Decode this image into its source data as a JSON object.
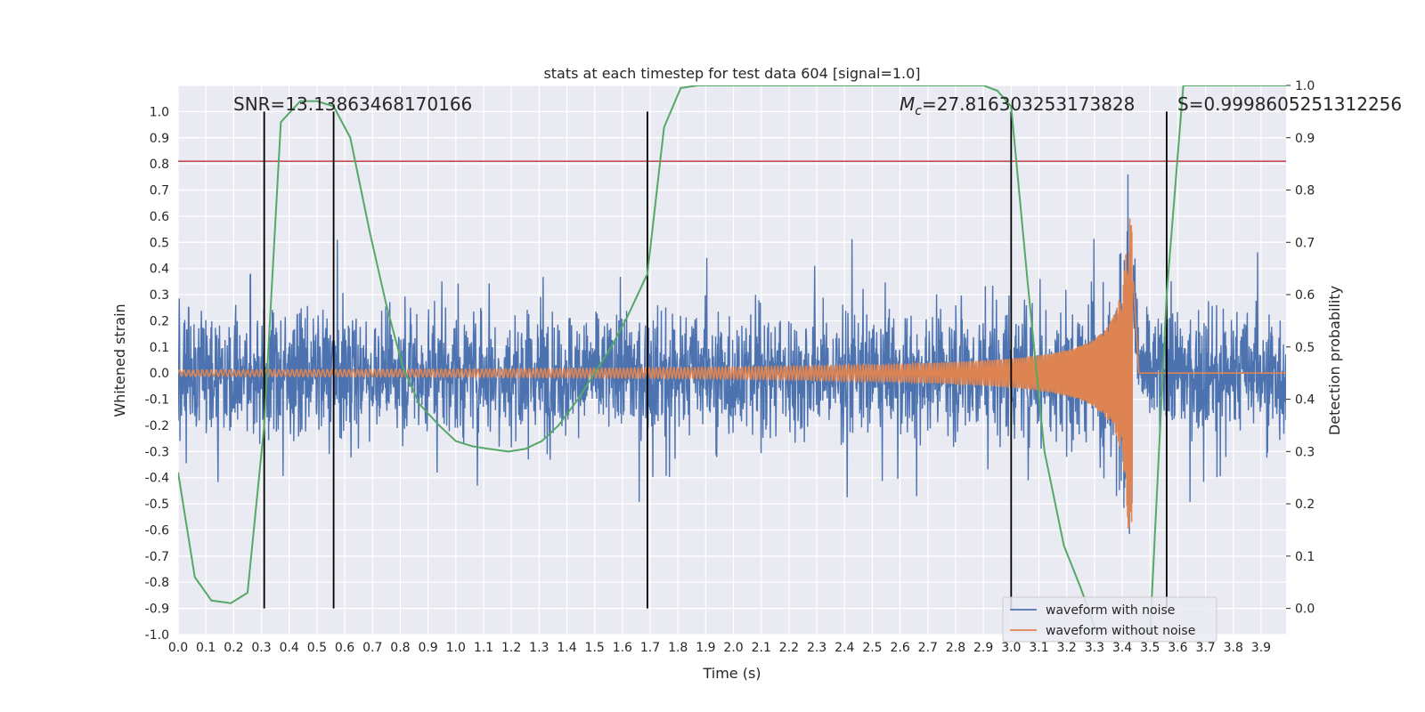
{
  "chart_data": {
    "type": "line",
    "title": "stats at each timestep for test data 604 [signal=1.0]",
    "xlabel": "Time (s)",
    "ylabel": "Whitened strain",
    "y2label": "Detection probability",
    "xlim": [
      0.0,
      3.99
    ],
    "ylim": [
      -1.0,
      1.1
    ],
    "y2lim": [
      -0.05,
      1.0
    ],
    "xticks": [
      "0.0",
      "0.1",
      "0.2",
      "0.3",
      "0.4",
      "0.5",
      "0.6",
      "0.7",
      "0.8",
      "0.9",
      "1.0",
      "1.1",
      "1.2",
      "1.3",
      "1.4",
      "1.5",
      "1.6",
      "1.7",
      "1.8",
      "1.9",
      "2.0",
      "2.1",
      "2.2",
      "2.3",
      "2.4",
      "2.5",
      "2.6",
      "2.7",
      "2.8",
      "2.9",
      "3.0",
      "3.1",
      "3.2",
      "3.3",
      "3.4",
      "3.5",
      "3.6",
      "3.7",
      "3.8",
      "3.9"
    ],
    "yticks": [
      "1.0",
      "0.9",
      "0.8",
      "0.7",
      "0.6",
      "0.5",
      "0.4",
      "0.3",
      "0.2",
      "0.1",
      "0.0",
      "-0.1",
      "-0.2",
      "-0.3",
      "-0.4",
      "-0.5",
      "-0.6",
      "-0.7",
      "-0.8",
      "-0.9",
      "-1.0"
    ],
    "y2ticks": [
      "1.0",
      "0.9",
      "0.8",
      "0.7",
      "0.6",
      "0.5",
      "0.4",
      "0.3",
      "0.2",
      "0.1",
      "0.0"
    ],
    "grid": true,
    "legend_position": "bottom-right",
    "annotations": {
      "snr": "SNR=13.13863468170166",
      "mc_symbol": "M",
      "mc_sub": "c",
      "mc_value": "=27.816303253173828",
      "s": "S=0.9998605251312256"
    },
    "threshold_y": 0.81,
    "vertical_markers_x": [
      0.31,
      0.56,
      1.69,
      3.0,
      3.56
    ],
    "series": [
      {
        "name": "waveform with noise",
        "color": "#4c72b0",
        "noise_amplitude": 0.22,
        "peak_max": 0.92,
        "peak_min": -0.85
      },
      {
        "name": "waveform without noise",
        "color": "#dd8452",
        "merger_time": 3.44,
        "start_amplitude": 0.012,
        "peak_amplitude": 0.6,
        "peak_min": -0.72
      },
      {
        "name": "detection probability",
        "color": "#55a868",
        "axis": "right",
        "x": [
          0.0,
          0.06,
          0.12,
          0.19,
          0.25,
          0.31,
          0.37,
          0.44,
          0.5,
          0.56,
          0.62,
          0.69,
          0.75,
          0.81,
          0.87,
          0.94,
          1.0,
          1.06,
          1.12,
          1.19,
          1.25,
          1.31,
          1.37,
          1.44,
          1.5,
          1.56,
          1.62,
          1.69,
          1.75,
          1.81,
          1.87,
          1.94,
          2.0,
          2.9,
          2.95,
          3.0,
          3.06,
          3.12,
          3.19,
          3.25,
          3.31,
          3.37,
          3.44,
          3.5,
          3.56,
          3.62,
          3.69,
          3.99
        ],
        "y": [
          0.26,
          0.06,
          0.015,
          0.01,
          0.03,
          0.35,
          0.93,
          0.97,
          0.97,
          0.96,
          0.9,
          0.72,
          0.58,
          0.46,
          0.39,
          0.35,
          0.32,
          0.31,
          0.305,
          0.3,
          0.305,
          0.32,
          0.35,
          0.4,
          0.45,
          0.5,
          0.56,
          0.64,
          0.92,
          0.995,
          1.0,
          1.0,
          1.0,
          1.0,
          0.99,
          0.96,
          0.62,
          0.3,
          0.12,
          0.04,
          -0.05,
          -0.1,
          -0.12,
          -0.05,
          0.6,
          1.0,
          1.0,
          1.0
        ]
      }
    ]
  }
}
